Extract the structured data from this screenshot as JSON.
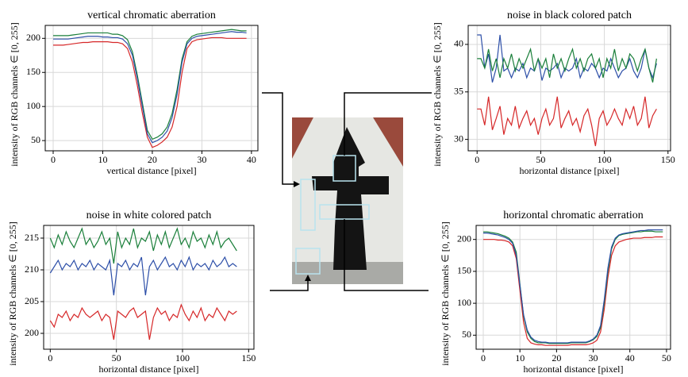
{
  "chart_data": [
    {
      "type": "line",
      "title": "vertical chromatic aberration",
      "xlabel": "vertical distance [pixel]",
      "ylabel": "intensity of RGB channels ∈ [0, 255]",
      "x": [
        0,
        1,
        2,
        3,
        4,
        5,
        6,
        7,
        8,
        9,
        10,
        11,
        12,
        13,
        14,
        15,
        16,
        17,
        18,
        19,
        20,
        21,
        22,
        23,
        24,
        25,
        26,
        27,
        28,
        29,
        30,
        31,
        32,
        33,
        34,
        35,
        36,
        37,
        38,
        39
      ],
      "series": [
        {
          "color": "#d62728",
          "values": [
            190,
            190,
            190,
            191,
            192,
            193,
            194,
            194,
            195,
            195,
            195,
            195,
            194,
            194,
            192,
            185,
            165,
            130,
            90,
            55,
            40,
            43,
            48,
            55,
            70,
            100,
            150,
            185,
            195,
            198,
            199,
            200,
            201,
            201,
            201,
            200,
            200,
            200,
            200,
            200
          ]
        },
        {
          "color": "#1a7f3a",
          "values": [
            204,
            204,
            204,
            204,
            205,
            206,
            207,
            208,
            208,
            208,
            208,
            208,
            206,
            206,
            204,
            198,
            180,
            145,
            105,
            65,
            52,
            55,
            60,
            70,
            90,
            125,
            170,
            195,
            203,
            206,
            207,
            208,
            209,
            210,
            211,
            212,
            213,
            212,
            211,
            211
          ]
        },
        {
          "color": "#2d4fa8",
          "values": [
            199,
            199,
            199,
            199,
            200,
            201,
            202,
            203,
            203,
            203,
            202,
            202,
            201,
            201,
            199,
            192,
            175,
            140,
            100,
            60,
            47,
            50,
            55,
            64,
            84,
            118,
            165,
            192,
            200,
            203,
            204,
            205,
            206,
            207,
            208,
            209,
            210,
            209,
            209,
            208
          ]
        }
      ],
      "xlim": [
        -1.6,
        41.3
      ],
      "ylim": [
        35,
        219
      ],
      "xticks": [
        0,
        10,
        20,
        30,
        40
      ],
      "yticks": [
        50,
        100,
        150,
        200
      ],
      "grid": true
    },
    {
      "type": "line",
      "title": "noise in black colored patch",
      "xlabel": "horizontal distance [pixel]",
      "ylabel": "intensity of RGB channels ∈ [0, 255]",
      "x": [
        0,
        3,
        6,
        9,
        12,
        15,
        18,
        21,
        24,
        27,
        30,
        33,
        36,
        39,
        42,
        45,
        48,
        51,
        54,
        57,
        60,
        63,
        66,
        69,
        72,
        75,
        78,
        81,
        84,
        87,
        90,
        93,
        96,
        99,
        102,
        105,
        108,
        111,
        114,
        117,
        120,
        123,
        126,
        129,
        132,
        135,
        138,
        141
      ],
      "series": [
        {
          "color": "#d62728",
          "values": [
            33.2,
            33.2,
            31.5,
            34.5,
            31,
            32.2,
            33.5,
            30.5,
            32.2,
            31.5,
            33.5,
            31.2,
            32.2,
            33,
            31.5,
            32.2,
            30.5,
            32.2,
            33.2,
            31.5,
            32.2,
            34.5,
            31.2,
            32.2,
            33,
            31.5,
            32.2,
            30.8,
            32.5,
            33.2,
            31.5,
            29.3,
            32.2,
            33,
            31.5,
            32.2,
            33.2,
            32.2,
            31.5,
            33.2,
            32.2,
            33.5,
            31.5,
            32.2,
            34.5,
            31.2,
            32.5,
            33.2
          ]
        },
        {
          "color": "#2d4fa8",
          "values": [
            41,
            41,
            37.5,
            39,
            36,
            37.5,
            41,
            37.2,
            37.5,
            36.5,
            37.5,
            37.2,
            38,
            36.5,
            37.5,
            37.2,
            38.5,
            36.2,
            37.5,
            37.2,
            37.5,
            38,
            36.5,
            37.5,
            37.2,
            37.5,
            38.5,
            36.5,
            37.5,
            37.2,
            38,
            37.5,
            36.5,
            37.5,
            37.2,
            38.5,
            37.5,
            36.5,
            37.2,
            37.5,
            38.5,
            37.2,
            36.5,
            37.5,
            39.5,
            37.5,
            36.5,
            38
          ]
        },
        {
          "color": "#1a7f3a",
          "values": [
            38.5,
            38.5,
            37.5,
            39.5,
            37.2,
            38.5,
            36.5,
            38.5,
            37.5,
            39,
            37.2,
            38.5,
            37.5,
            38.5,
            39.5,
            37.2,
            38.5,
            37.5,
            38.5,
            36.5,
            39,
            37.5,
            38.5,
            37.2,
            38.5,
            39.5,
            37.5,
            38.5,
            37.2,
            38.5,
            39,
            37.5,
            38.5,
            36.5,
            38.5,
            37.5,
            39.5,
            37.2,
            38.5,
            37.5,
            39,
            38.5,
            37.2,
            38.5,
            39.5,
            37.5,
            36,
            38.5
          ]
        }
      ],
      "xlim": [
        -7,
        152
      ],
      "ylim": [
        28.8,
        42
      ],
      "xticks": [
        0,
        50,
        100,
        150
      ],
      "yticks": [
        30,
        35,
        40
      ],
      "grid": true
    },
    {
      "type": "line",
      "title": "noise in white colored patch",
      "xlabel": "horizontal distance [pixel]",
      "ylabel": "intensity of RGB channels ∈ [0, 255]",
      "x": [
        0,
        3,
        6,
        9,
        12,
        15,
        18,
        21,
        24,
        27,
        30,
        33,
        36,
        39,
        42,
        45,
        48,
        51,
        54,
        57,
        60,
        63,
        66,
        69,
        72,
        75,
        78,
        81,
        84,
        87,
        90,
        93,
        96,
        99,
        102,
        105,
        108,
        111,
        114,
        117,
        120,
        123,
        126,
        129,
        132,
        135,
        138,
        141
      ],
      "series": [
        {
          "color": "#d62728",
          "values": [
            202,
            201,
            203,
            202.5,
            203.5,
            202,
            203,
            202.5,
            204,
            203,
            202.5,
            203,
            203.5,
            202,
            203,
            202.5,
            199,
            203.5,
            203,
            202.5,
            203.5,
            204,
            202.5,
            203,
            203.5,
            199,
            202.5,
            204,
            203,
            203.5,
            202,
            203,
            202.5,
            204.5,
            203,
            202,
            203.5,
            202.5,
            204,
            202,
            203,
            202.5,
            204,
            203,
            202,
            203.5,
            203,
            203.5
          ]
        },
        {
          "color": "#2d4fa8",
          "values": [
            209.5,
            210.5,
            211.5,
            210,
            211,
            210.5,
            211.5,
            210,
            211,
            210.5,
            211.5,
            210,
            211,
            210.5,
            210,
            211.5,
            206,
            211,
            210.5,
            211.5,
            210,
            211,
            210.5,
            212,
            206,
            210.5,
            211.5,
            210,
            211,
            212,
            210.5,
            211,
            210,
            211.5,
            210.5,
            212,
            210,
            211,
            210.5,
            211,
            210,
            211.5,
            210.5,
            211,
            212,
            210.5,
            211,
            210.5
          ]
        },
        {
          "color": "#1a7f3a",
          "values": [
            215,
            213.5,
            215.5,
            214,
            216,
            214.5,
            213.5,
            215,
            216.5,
            214,
            215,
            213.5,
            214.5,
            216,
            214,
            215,
            211,
            216,
            213.5,
            215,
            214,
            216.5,
            213.5,
            215,
            214.5,
            216,
            213,
            215.5,
            214,
            216,
            213.5,
            215,
            216.5,
            214,
            215,
            213.5,
            216,
            214.5,
            215,
            213.5,
            215.5,
            214,
            216,
            213.5,
            214.5,
            215,
            214,
            213
          ]
        }
      ],
      "xlim": [
        -5,
        154
      ],
      "ylim": [
        197.5,
        217
      ],
      "xticks": [
        0,
        50,
        100,
        150
      ],
      "yticks": [
        200,
        205,
        210,
        215
      ],
      "grid": true
    },
    {
      "type": "line",
      "title": "horizontal chromatic aberration",
      "xlabel": "horizontal distance [pixel]",
      "ylabel": "intensity of RGB channels ∈ [0, 255]",
      "x": [
        0,
        1,
        2,
        3,
        4,
        5,
        6,
        7,
        8,
        9,
        10,
        11,
        12,
        13,
        14,
        15,
        16,
        17,
        18,
        19,
        20,
        21,
        22,
        23,
        24,
        25,
        26,
        27,
        28,
        29,
        30,
        31,
        32,
        33,
        34,
        35,
        36,
        37,
        38,
        39,
        40,
        41,
        42,
        43,
        44,
        45,
        46,
        47,
        48,
        49
      ],
      "series": [
        {
          "color": "#d62728",
          "values": [
            200,
            200,
            200,
            200,
            199,
            199,
            198,
            196,
            190,
            170,
            120,
            70,
            45,
            38,
            36,
            35,
            35,
            34,
            34,
            34,
            34,
            34,
            34,
            34,
            35,
            35,
            35,
            35,
            35,
            36,
            38,
            42,
            55,
            90,
            140,
            175,
            190,
            196,
            198,
            200,
            201,
            202,
            202,
            202,
            203,
            203,
            203,
            204,
            204,
            204
          ]
        },
        {
          "color": "#1a7f3a",
          "values": [
            212,
            212,
            211,
            210,
            209,
            207,
            205,
            202,
            196,
            180,
            130,
            80,
            55,
            45,
            40,
            38,
            38,
            38,
            37,
            37,
            37,
            37,
            37,
            37,
            38,
            38,
            38,
            38,
            38,
            40,
            43,
            48,
            62,
            100,
            150,
            185,
            200,
            206,
            208,
            209,
            210,
            211,
            212,
            212,
            213,
            213,
            213,
            212,
            212,
            212
          ]
        },
        {
          "color": "#2d4fa8",
          "values": [
            210,
            210,
            209,
            208,
            207,
            205,
            203,
            200,
            194,
            175,
            128,
            82,
            58,
            47,
            42,
            40,
            39,
            39,
            38,
            38,
            38,
            38,
            38,
            38,
            39,
            39,
            39,
            39,
            39,
            41,
            44,
            50,
            65,
            105,
            155,
            188,
            202,
            207,
            209,
            210,
            211,
            212,
            213,
            214,
            214,
            215,
            215,
            215,
            215,
            215
          ]
        }
      ],
      "xlim": [
        -1.95,
        51.1
      ],
      "ylim": [
        28,
        222
      ],
      "xticks": [
        0,
        10,
        20,
        30,
        40,
        50
      ],
      "yticks": [
        50,
        100,
        150,
        200
      ],
      "grid": true
    }
  ]
}
